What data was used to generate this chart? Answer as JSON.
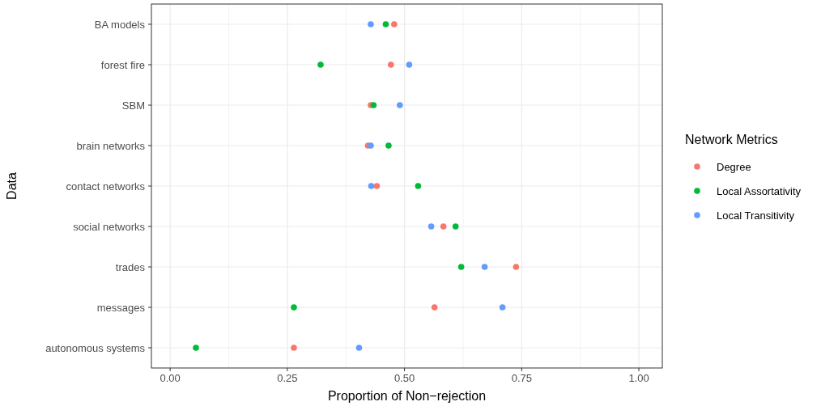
{
  "chart_data": {
    "type": "scatter",
    "xlabel": "Proportion of Non−rejection",
    "ylabel": "Data",
    "legend_title": "Network Metrics",
    "legend": "right",
    "grid": true,
    "marker": "circle",
    "orientation": "horizontal",
    "categories": [
      "BA models",
      "forest fire",
      "SBM",
      "brain networks",
      "contact networks",
      "social networks",
      "trades",
      "messages",
      "autonomous systems"
    ],
    "xlim": [
      -0.04,
      1.05
    ],
    "xticks": [
      {
        "value": 0,
        "label": "0.00"
      },
      {
        "value": 0.125,
        "label": null
      },
      {
        "value": 0.25,
        "label": "0.25"
      },
      {
        "value": 0.375,
        "label": null
      },
      {
        "value": 0.5,
        "label": "0.50"
      },
      {
        "value": 0.625,
        "label": null
      },
      {
        "value": 0.75,
        "label": "0.75"
      },
      {
        "value": 0.875,
        "label": null
      },
      {
        "value": 1,
        "label": "1.00"
      }
    ],
    "series": [
      {
        "name": "Degree",
        "color": "#f8766d",
        "values": [
          0.478,
          0.471,
          0.428,
          0.422,
          0.441,
          0.583,
          0.738,
          0.564,
          0.264
        ]
      },
      {
        "name": "Local Assortativity",
        "color": "#00ba38",
        "values": [
          0.46,
          0.321,
          0.434,
          0.466,
          0.529,
          0.609,
          0.621,
          0.264,
          0.055
        ]
      },
      {
        "name": "Local Transitivity",
        "color": "#619cff",
        "values": [
          0.428,
          0.51,
          0.49,
          0.428,
          0.429,
          0.557,
          0.671,
          0.709,
          0.403
        ]
      }
    ]
  }
}
